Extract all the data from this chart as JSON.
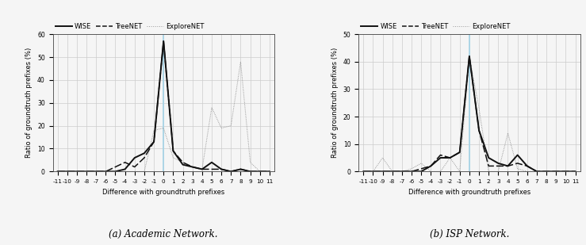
{
  "x_values": [
    -11,
    -10,
    -9,
    -8,
    -7,
    -6,
    -5,
    -4,
    -3,
    -2,
    -1,
    0,
    1,
    2,
    3,
    4,
    5,
    6,
    7,
    8,
    9,
    10,
    11
  ],
  "academic": {
    "WISE": [
      0,
      0,
      0,
      0,
      0,
      0,
      0,
      1,
      6,
      8,
      13,
      57,
      9,
      3,
      2,
      1,
      4,
      1,
      0,
      1,
      0,
      0,
      0
    ],
    "TreeNET": [
      0,
      0,
      0,
      0,
      0,
      0,
      2,
      4,
      2,
      6,
      13,
      57,
      9,
      4,
      2,
      1,
      1,
      1,
      0,
      1,
      0,
      0,
      0
    ],
    "ExploreNET": [
      0,
      0,
      0,
      0,
      0,
      0,
      0,
      0,
      0,
      0,
      18,
      19,
      6,
      4,
      2,
      1,
      28,
      19,
      20,
      48,
      4,
      0,
      0
    ]
  },
  "isp": {
    "WISE": [
      0,
      0,
      0,
      0,
      0,
      0,
      0,
      2,
      5,
      5,
      7,
      42,
      15,
      5,
      3,
      2,
      6,
      2,
      0,
      0,
      0,
      0,
      0
    ],
    "TreeNET": [
      0,
      0,
      0,
      0,
      0,
      0,
      1,
      2,
      6,
      5,
      7,
      42,
      15,
      2,
      2,
      2,
      3,
      2,
      0,
      0,
      0,
      0,
      0
    ],
    "ExploreNET": [
      0,
      0,
      5,
      0,
      0,
      1,
      3,
      0,
      0,
      5,
      0,
      42,
      23,
      0,
      0,
      14,
      1,
      0,
      0,
      0,
      0,
      0,
      0
    ]
  },
  "ylim_academic": [
    0,
    60
  ],
  "ylim_isp": [
    0,
    50
  ],
  "yticks_academic": [
    0,
    10,
    20,
    30,
    40,
    50,
    60
  ],
  "yticks_isp": [
    0,
    10,
    20,
    30,
    40,
    50
  ],
  "xlabel": "Difference with groundtruth prefixes",
  "ylabel": "Ratio of groundtruth prefixes (%)",
  "caption_a": "(a) Academic Network.",
  "caption_b": "(b) ISP Network.",
  "legend_labels": [
    "WISE",
    "TreeNET",
    "ExploreNET"
  ],
  "vline_color": "#a8d4e6",
  "wise_color": "#111111",
  "treenet_color": "#111111",
  "explorenet_color": "#999999",
  "grid_color": "#cccccc",
  "background_color": "#f5f5f5"
}
